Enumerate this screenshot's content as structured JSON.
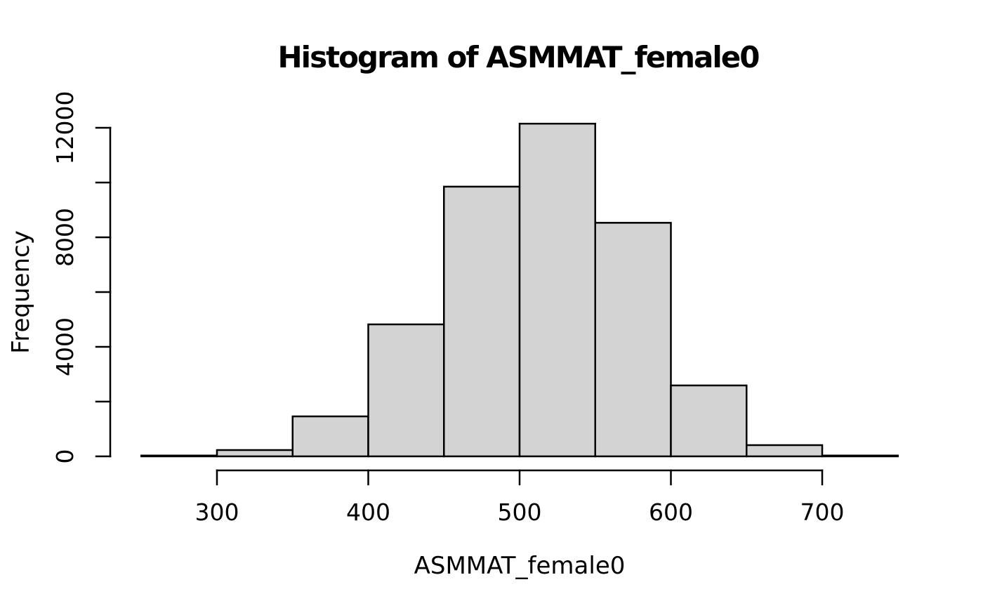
{
  "figure": {
    "title": "Histogram of ASMMAT_female0",
    "xlabel": "ASMMAT_female0",
    "ylabel": "Frequency"
  },
  "colors": {
    "background": "#ffffff",
    "bar_fill": "#d3d3d3",
    "bar_stroke": "#000000",
    "axis": "#000000",
    "text": "#000000"
  },
  "chart_data": {
    "type": "bar",
    "subtype": "histogram",
    "title": "Histogram of ASMMAT_female0",
    "xlabel": "ASMMAT_female0",
    "ylabel": "Frequency",
    "bin_width": 50,
    "bin_edges": [
      250,
      300,
      350,
      400,
      450,
      500,
      550,
      600,
      650,
      700,
      750
    ],
    "counts": [
      30,
      230,
      1460,
      4820,
      9850,
      12150,
      8530,
      2590,
      410,
      30
    ],
    "x_ticks": [
      300,
      400,
      500,
      600,
      700
    ],
    "x_tick_labels": [
      "300",
      "400",
      "500",
      "600",
      "700"
    ],
    "y_ticks": [
      0,
      2000,
      4000,
      6000,
      8000,
      10000,
      12000
    ],
    "y_labeled_ticks": [
      0,
      4000,
      8000,
      12000
    ],
    "y_tick_labels": [
      "0",
      "4000",
      "8000",
      "12000"
    ],
    "xlim": [
      250,
      750
    ],
    "ylim": [
      0,
      12000
    ],
    "grid": false,
    "legend": null
  }
}
